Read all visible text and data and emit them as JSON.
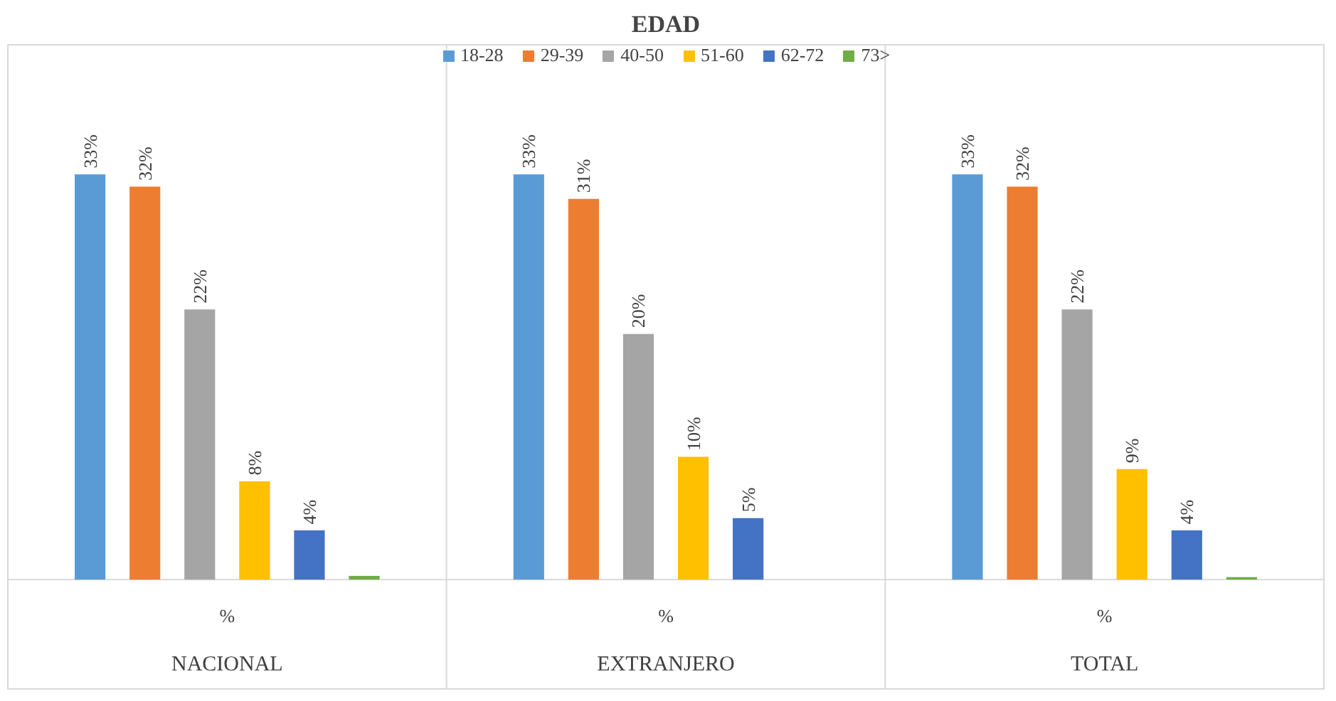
{
  "chart_data": {
    "type": "bar",
    "title": "EDAD",
    "categories": [
      "NACIONAL",
      "EXTRANJERO",
      "TOTAL"
    ],
    "series": [
      {
        "name": "18-28",
        "color": "#5b9bd5",
        "values": [
          33,
          33,
          33
        ],
        "value_labels": [
          "33%",
          "33%",
          "33%"
        ]
      },
      {
        "name": "29-39",
        "color": "#ed7d31",
        "values": [
          32,
          31,
          32
        ],
        "value_labels": [
          "32%",
          "31%",
          "32%"
        ]
      },
      {
        "name": "40-50",
        "color": "#a5a5a5",
        "values": [
          22,
          20,
          22
        ],
        "value_labels": [
          "22%",
          "20%",
          "22%"
        ]
      },
      {
        "name": "51-60",
        "color": "#ffc000",
        "values": [
          8,
          10,
          9
        ],
        "value_labels": [
          "8%",
          "10%",
          "9%"
        ]
      },
      {
        "name": "62-72",
        "color": "#4472c4",
        "values": [
          4,
          5,
          4
        ],
        "value_labels": [
          "4%",
          "5%",
          "4%"
        ]
      },
      {
        "name": "73>",
        "color": "#70ad47",
        "values": [
          0.3,
          0,
          0.2
        ],
        "value_labels": [
          null,
          null,
          null
        ]
      }
    ],
    "annotations": [
      "%",
      "%",
      "%"
    ],
    "legend": "top"
  }
}
